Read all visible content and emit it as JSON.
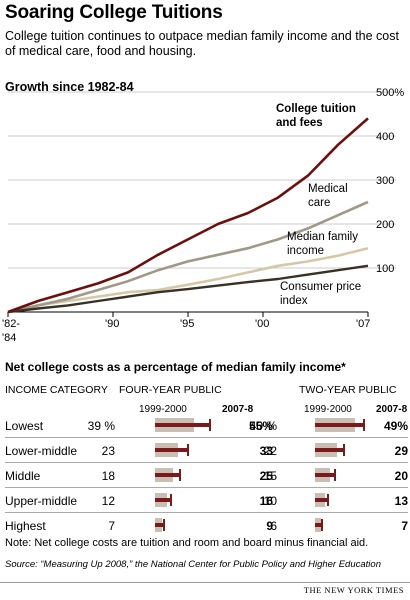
{
  "header": {
    "title": "Soaring College Tuitions",
    "subtitle": "College tuition continues to outpace median family income and the cost of medical care, food and housing."
  },
  "colors": {
    "college": "#6b0f0f",
    "medical": "#a09888",
    "income": "#d4c8a8",
    "cpi": "#3a3025",
    "bar_2000": "#c8beb4",
    "bar_2007": "#7a1a1a"
  },
  "chart_data": [
    {
      "type": "line",
      "title": "Growth since 1982-84",
      "x_tick_labels": [
        "'82-",
        "'84",
        "'90",
        "'95",
        "'00",
        "'07"
      ],
      "y_tick_labels": [
        "500%",
        "400",
        "300",
        "200",
        "100"
      ],
      "x_range": [
        1983,
        2007
      ],
      "ylim": [
        0,
        500
      ],
      "grid": "horizontal",
      "series": [
        {
          "name": "College tuition and fees",
          "name_lines": [
            "College tuition",
            "and fees"
          ],
          "x": [
            1983,
            1985,
            1987,
            1989,
            1991,
            1993,
            1995,
            1997,
            1999,
            2001,
            2003,
            2005,
            2007
          ],
          "y": [
            0,
            25,
            45,
            65,
            90,
            130,
            165,
            200,
            225,
            260,
            310,
            380,
            440
          ]
        },
        {
          "name": "Medical care",
          "name_lines": [
            "Medical",
            "care"
          ],
          "x": [
            1983,
            1985,
            1987,
            1989,
            1991,
            1993,
            1995,
            1997,
            1999,
            2001,
            2003,
            2005,
            2007
          ],
          "y": [
            0,
            15,
            30,
            50,
            70,
            95,
            115,
            130,
            145,
            165,
            190,
            220,
            250
          ]
        },
        {
          "name": "Median family income",
          "name_lines": [
            "Median family",
            "income"
          ],
          "x": [
            1983,
            1985,
            1987,
            1989,
            1991,
            1993,
            1995,
            1997,
            1999,
            2001,
            2003,
            2005,
            2007
          ],
          "y": [
            0,
            15,
            25,
            35,
            45,
            50,
            62,
            75,
            90,
            105,
            115,
            128,
            145
          ]
        },
        {
          "name": "Consumer price index",
          "name_lines": [
            "Consumer price",
            "index"
          ],
          "x": [
            1983,
            1985,
            1987,
            1989,
            1991,
            1993,
            1995,
            1997,
            1999,
            2001,
            2003,
            2005,
            2007
          ],
          "y": [
            0,
            8,
            15,
            25,
            35,
            45,
            52,
            60,
            68,
            75,
            85,
            95,
            105
          ]
        }
      ]
    },
    {
      "type": "bar",
      "title": "Net college costs as a percentage of median family income*",
      "category_header": "INCOME CATEGORY",
      "categories": [
        "Lowest",
        "Lower-middle",
        "Middle",
        "Upper-middle",
        "Highest"
      ],
      "groups": [
        {
          "name": "FOUR-YEAR PUBLIC",
          "series": [
            {
              "name": "1999-2000",
              "values": [
                39,
                23,
                18,
                12,
                7
              ]
            },
            {
              "name": "2007-8",
              "values": [
                55,
                33,
                25,
                16,
                9
              ]
            }
          ],
          "display": {
            "lowest_2000": "39 %",
            "lowest_2007": "55%"
          }
        },
        {
          "name": "TWO-YEAR PUBLIC",
          "series": [
            {
              "name": "1999-2000",
              "values": [
                40,
                22,
                15,
                10,
                6
              ]
            },
            {
              "name": "2007-8",
              "values": [
                49,
                29,
                20,
                13,
                7
              ]
            }
          ],
          "display": {
            "lowest_2000": "40 %",
            "lowest_2007": "49%"
          }
        }
      ]
    }
  ],
  "footer": {
    "note": "Note: Net college costs are tuition and room and board minus financial aid.",
    "source": "Source: “Measuring Up 2008,” the National Center for Public Policy and Higher Education",
    "credit": "THE NEW YORK TIMES"
  }
}
